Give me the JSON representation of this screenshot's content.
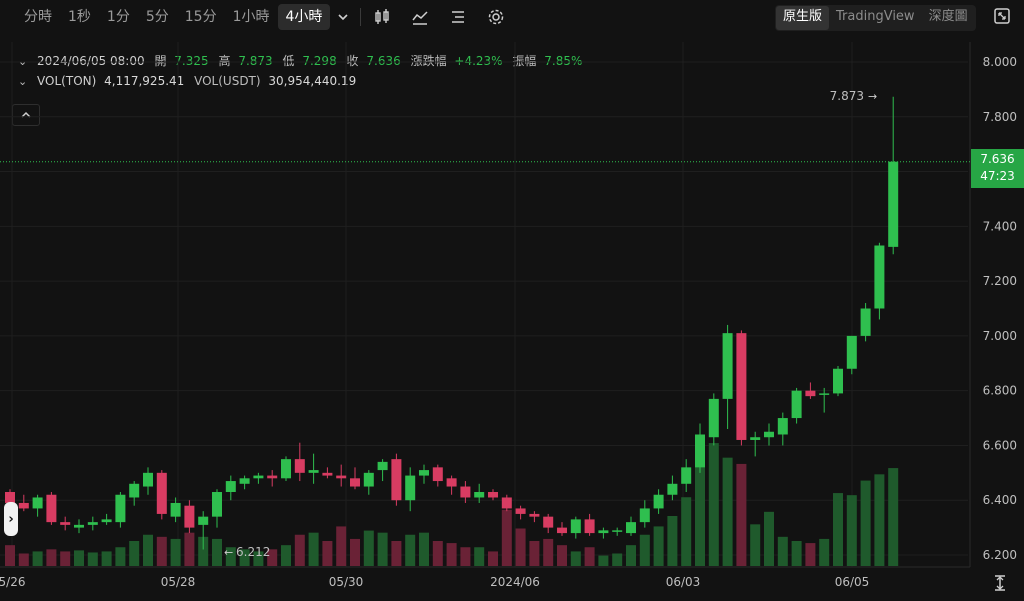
{
  "toolbar": {
    "timeframes": [
      "分時",
      "1秒",
      "1分",
      "5分",
      "15分",
      "1小時",
      "4小時"
    ],
    "active_timeframe": "4小時",
    "views": [
      "原生版",
      "TradingView",
      "深度圖"
    ],
    "active_view": "原生版"
  },
  "ohlc": {
    "date": "2024/06/05 08:00",
    "open_label": "開",
    "open": "7.325",
    "high_label": "高",
    "high": "7.873",
    "low_label": "低",
    "low": "7.298",
    "close_label": "收",
    "close": "7.636",
    "change_label": "漲跌幅",
    "change": "+4.23%",
    "amp_label": "振幅",
    "amp": "7.85%"
  },
  "volume": {
    "ton_label": "VOL(TON)",
    "ton": "4,117,925.41",
    "usdt_label": "VOL(USDT)",
    "usdt": "30,954,440.19"
  },
  "price_badge": {
    "price": "7.636",
    "countdown": "47:23"
  },
  "annotations": {
    "high": "7.873",
    "low": "6.212"
  },
  "colors": {
    "up": "#2fbf4f",
    "down": "#d83c62",
    "background": "#121212"
  },
  "chart_data": {
    "type": "candlestick",
    "y_ticks": [
      "8.000",
      "7.800",
      "7.600",
      "7.400",
      "7.200",
      "7.000",
      "6.800",
      "6.600",
      "6.400",
      "6.200"
    ],
    "x_ticks": [
      "5/26",
      "05/28",
      "05/30",
      "2024/06",
      "06/03",
      "06/05"
    ],
    "ylim": [
      6.2,
      8.0
    ],
    "last_price": 7.636,
    "candles": [
      [
        6.43,
        6.44,
        6.38,
        6.39
      ],
      [
        6.39,
        6.42,
        6.36,
        6.37
      ],
      [
        6.37,
        6.42,
        6.34,
        6.41
      ],
      [
        6.42,
        6.43,
        6.31,
        6.32
      ],
      [
        6.32,
        6.34,
        6.29,
        6.31
      ],
      [
        6.3,
        6.33,
        6.28,
        6.31
      ],
      [
        6.31,
        6.34,
        6.29,
        6.32
      ],
      [
        6.32,
        6.35,
        6.31,
        6.33
      ],
      [
        6.32,
        6.43,
        6.3,
        6.42
      ],
      [
        6.41,
        6.47,
        6.38,
        6.46
      ],
      [
        6.45,
        6.52,
        6.42,
        6.5
      ],
      [
        6.5,
        6.51,
        6.33,
        6.35
      ],
      [
        6.34,
        6.41,
        6.32,
        6.39
      ],
      [
        6.38,
        6.4,
        6.28,
        6.3
      ],
      [
        6.31,
        6.36,
        6.22,
        6.34
      ],
      [
        6.34,
        6.44,
        6.3,
        6.43
      ],
      [
        6.43,
        6.49,
        6.4,
        6.47
      ],
      [
        6.46,
        6.49,
        6.44,
        6.48
      ],
      [
        6.48,
        6.5,
        6.46,
        6.49
      ],
      [
        6.49,
        6.51,
        6.45,
        6.48
      ],
      [
        6.48,
        6.56,
        6.47,
        6.55
      ],
      [
        6.55,
        6.61,
        6.47,
        6.5
      ],
      [
        6.5,
        6.57,
        6.46,
        6.51
      ],
      [
        6.5,
        6.52,
        6.48,
        6.49
      ],
      [
        6.49,
        6.53,
        6.45,
        6.48
      ],
      [
        6.48,
        6.52,
        6.44,
        6.45
      ],
      [
        6.45,
        6.51,
        6.42,
        6.5
      ],
      [
        6.51,
        6.55,
        6.47,
        6.54
      ],
      [
        6.55,
        6.57,
        6.38,
        6.4
      ],
      [
        6.4,
        6.52,
        6.36,
        6.49
      ],
      [
        6.49,
        6.53,
        6.46,
        6.51
      ],
      [
        6.52,
        6.53,
        6.45,
        6.47
      ],
      [
        6.48,
        6.49,
        6.42,
        6.45
      ],
      [
        6.45,
        6.47,
        6.39,
        6.41
      ],
      [
        6.41,
        6.46,
        6.39,
        6.43
      ],
      [
        6.43,
        6.44,
        6.4,
        6.41
      ],
      [
        6.41,
        6.42,
        6.36,
        6.37
      ],
      [
        6.37,
        6.38,
        6.33,
        6.35
      ],
      [
        6.35,
        6.36,
        6.32,
        6.34
      ],
      [
        6.34,
        6.35,
        6.28,
        6.3
      ],
      [
        6.3,
        6.32,
        6.27,
        6.28
      ],
      [
        6.28,
        6.34,
        6.26,
        6.33
      ],
      [
        6.33,
        6.35,
        6.27,
        6.28
      ],
      [
        6.28,
        6.3,
        6.26,
        6.29
      ],
      [
        6.29,
        6.3,
        6.27,
        6.29
      ],
      [
        6.28,
        6.34,
        6.27,
        6.32
      ],
      [
        6.32,
        6.4,
        6.3,
        6.37
      ],
      [
        6.37,
        6.44,
        6.35,
        6.42
      ],
      [
        6.42,
        6.49,
        6.4,
        6.46
      ],
      [
        6.46,
        6.55,
        6.43,
        6.52
      ],
      [
        6.52,
        6.68,
        6.5,
        6.64
      ],
      [
        6.63,
        6.79,
        6.6,
        6.77
      ],
      [
        6.77,
        7.04,
        6.66,
        7.01
      ],
      [
        7.01,
        7.02,
        6.6,
        6.62
      ],
      [
        6.62,
        6.65,
        6.56,
        6.63
      ],
      [
        6.63,
        6.68,
        6.6,
        6.65
      ],
      [
        6.64,
        6.72,
        6.6,
        6.7
      ],
      [
        6.7,
        6.81,
        6.68,
        6.8
      ],
      [
        6.8,
        6.83,
        6.77,
        6.78
      ],
      [
        6.79,
        6.81,
        6.72,
        6.79
      ],
      [
        6.79,
        6.89,
        6.78,
        6.88
      ],
      [
        6.88,
        7.0,
        6.86,
        7.0
      ],
      [
        7.0,
        7.12,
        6.98,
        7.1
      ],
      [
        7.1,
        7.34,
        7.06,
        7.33
      ],
      [
        7.325,
        7.873,
        7.298,
        7.636
      ]
    ],
    "volumes": [
      1.0,
      0.6,
      0.7,
      0.8,
      0.7,
      0.75,
      0.65,
      0.7,
      0.9,
      1.2,
      1.5,
      1.4,
      1.3,
      1.6,
      1.4,
      1.3,
      0.9,
      0.8,
      0.7,
      0.8,
      1.0,
      1.5,
      1.6,
      1.2,
      1.9,
      1.3,
      1.7,
      1.6,
      1.2,
      1.5,
      1.6,
      1.2,
      1.1,
      0.9,
      0.9,
      0.7,
      2.7,
      1.8,
      1.2,
      1.3,
      1.0,
      0.7,
      0.9,
      0.5,
      0.6,
      1.0,
      1.5,
      1.9,
      2.4,
      3.3,
      5.8,
      5.9,
      5.2,
      4.9,
      2.0,
      2.6,
      1.4,
      1.2,
      1.1,
      1.3,
      3.5,
      3.4,
      4.1,
      4.4,
      4.7
    ],
    "vol_max": 6.0
  }
}
